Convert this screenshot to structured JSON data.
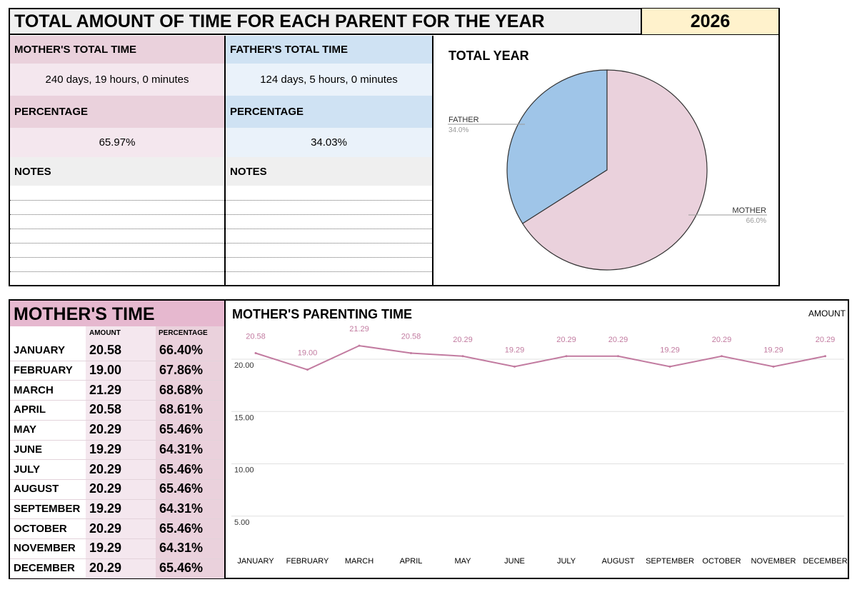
{
  "header": {
    "title": "TOTAL AMOUNT OF TIME FOR EACH PARENT FOR THE YEAR",
    "year": "2026"
  },
  "mother_panel": {
    "total_label": "MOTHER'S TOTAL TIME",
    "total_value": "240 days, 19 hours, 0 minutes",
    "percentage_label": "PERCENTAGE",
    "percentage_value": "65.97%",
    "notes_label": "NOTES"
  },
  "father_panel": {
    "total_label": "FATHER'S TOTAL TIME",
    "total_value": "124 days, 5 hours, 0 minutes",
    "percentage_label": "PERCENTAGE",
    "percentage_value": "34.03%",
    "notes_label": "NOTES"
  },
  "colors": {
    "mother": "#ead1dc",
    "father": "#9fc5e8",
    "line": "#c27ba0",
    "year_bg": "#fff2cc",
    "header_bg": "#efefef"
  },
  "mother_table": {
    "title": "MOTHER'S TIME",
    "col_amount": "AMOUNT",
    "col_percentage": "PERCENTAGE",
    "rows": [
      {
        "month": "JANUARY",
        "amount": "20.58",
        "percentage": "66.40%"
      },
      {
        "month": "FEBRUARY",
        "amount": "19.00",
        "percentage": "67.86%"
      },
      {
        "month": "MARCH",
        "amount": "21.29",
        "percentage": "68.68%"
      },
      {
        "month": "APRIL",
        "amount": "20.58",
        "percentage": "68.61%"
      },
      {
        "month": "MAY",
        "amount": "20.29",
        "percentage": "65.46%"
      },
      {
        "month": "JUNE",
        "amount": "19.29",
        "percentage": "64.31%"
      },
      {
        "month": "JULY",
        "amount": "20.29",
        "percentage": "65.46%"
      },
      {
        "month": "AUGUST",
        "amount": "20.29",
        "percentage": "65.46%"
      },
      {
        "month": "SEPTEMBER",
        "amount": "19.29",
        "percentage": "64.31%"
      },
      {
        "month": "OCTOBER",
        "amount": "20.29",
        "percentage": "65.46%"
      },
      {
        "month": "NOVEMBER",
        "amount": "19.29",
        "percentage": "64.31%"
      },
      {
        "month": "DECEMBER",
        "amount": "20.29",
        "percentage": "65.46%"
      }
    ]
  },
  "chart_data": [
    {
      "type": "pie",
      "title": "TOTAL YEAR",
      "categories": [
        "FATHER",
        "MOTHER"
      ],
      "values": [
        34.0,
        66.0
      ],
      "labels": [
        "34.0%",
        "66.0%"
      ],
      "colors": [
        "#9fc5e8",
        "#ead1dc"
      ]
    },
    {
      "type": "line",
      "title": "MOTHER'S PARENTING TIME",
      "legend": "AMOUNT",
      "legend_position": "top-right",
      "categories": [
        "JANUARY",
        "FEBRUARY",
        "MARCH",
        "APRIL",
        "MAY",
        "JUNE",
        "JULY",
        "AUGUST",
        "SEPTEMBER",
        "OCTOBER",
        "NOVEMBER",
        "DECEMBER"
      ],
      "series": [
        {
          "name": "AMOUNT",
          "values": [
            20.58,
            19.0,
            21.29,
            20.58,
            20.29,
            19.29,
            20.29,
            20.29,
            19.29,
            20.29,
            19.29,
            20.29
          ]
        }
      ],
      "data_labels": [
        "20.58",
        "19.00",
        "21.29",
        "20.58",
        "20.29",
        "19.29",
        "20.29",
        "20.29",
        "19.29",
        "20.29",
        "19.29",
        "20.29"
      ],
      "yticks": [
        "5.00",
        "10.00",
        "15.00",
        "20.00"
      ],
      "ylim": [
        0,
        22
      ],
      "grid": true
    }
  ]
}
